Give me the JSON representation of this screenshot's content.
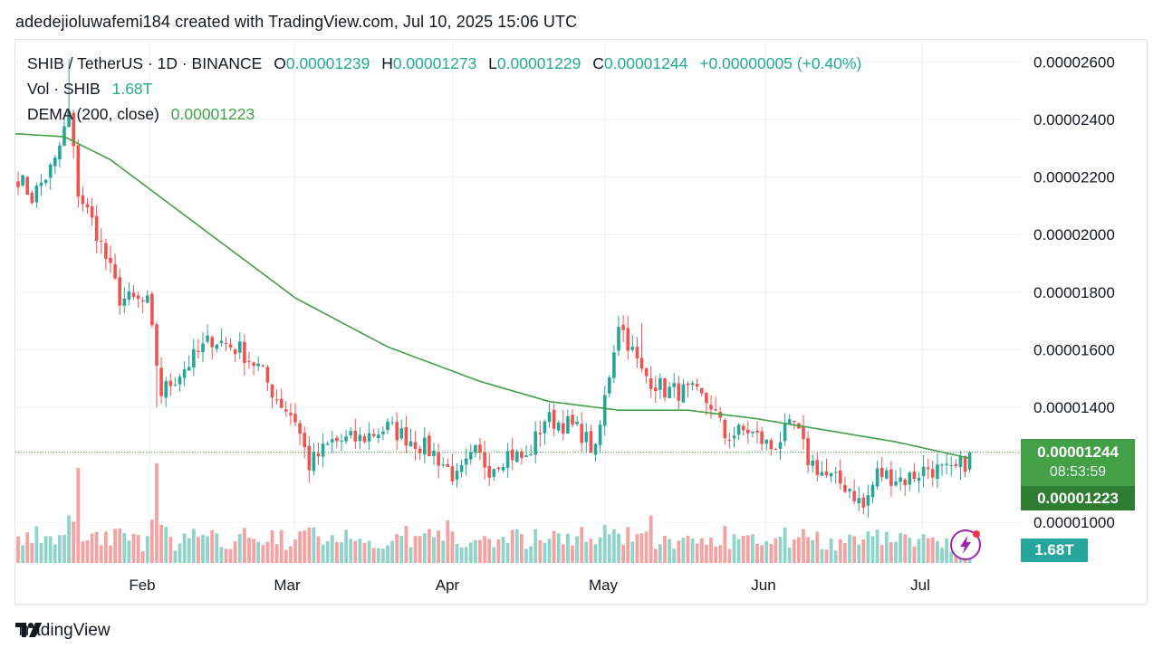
{
  "caption": "adedejioluwafemi184 created with TradingView.com, Jul 10, 2025 15:06 UTC",
  "legend": {
    "symbol": "SHIB / TetherUS · 1D · BINANCE",
    "o_label": "O",
    "o_value": "0.00001239",
    "h_label": "H",
    "h_value": "0.00001273",
    "l_label": "L",
    "l_value": "0.00001229",
    "c_label": "C",
    "c_value": "0.00001244",
    "change": "+0.00000005 (+0.40%)",
    "vol_label": "Vol · SHIB",
    "vol_value": "1.68T",
    "dema_label": "DEMA (200, close)",
    "dema_value": "0.00001223"
  },
  "badges": {
    "last_price": "0.00001244",
    "countdown": "08:53:59",
    "dema_price": "0.00001223",
    "volume": "1.68T"
  },
  "brand": "TradingView",
  "colors": {
    "up": "#26a69a",
    "down": "#ef5350",
    "vol_up": "#8fd3cb",
    "vol_down": "#f5a3a2",
    "dema": "#43a047",
    "grid": "#f0f3fa",
    "last_badge": "#43a047",
    "dema_badge": "#2e7d32",
    "vol_badge": "#26a69a"
  },
  "chart_data": {
    "type": "candlestick",
    "title": "SHIB / TetherUS · 1D · BINANCE",
    "y_axis": {
      "ticks": [
        "0.00002600",
        "0.00002400",
        "0.00002200",
        "0.00002000",
        "0.00001800",
        "0.00001600",
        "0.00001400",
        "0.00001000"
      ],
      "ylim": [
        9.3e-06,
        2.7e-05
      ]
    },
    "x_axis": {
      "ticks": [
        "Feb",
        "Mar",
        "Apr",
        "May",
        "Jun",
        "Jul"
      ]
    },
    "last_close": 1.244e-05,
    "dema_last": 1.223e-05,
    "anchors": [
      [
        0,
        22.0
      ],
      [
        3,
        21.3
      ],
      [
        8,
        22.5
      ],
      [
        11,
        24.2
      ],
      [
        13,
        21.5
      ],
      [
        17,
        20.1
      ],
      [
        22,
        17.8
      ],
      [
        28,
        17.6
      ],
      [
        31,
        14.5
      ],
      [
        35,
        15.2
      ],
      [
        42,
        16.4
      ],
      [
        48,
        16.0
      ],
      [
        52,
        15.4
      ],
      [
        56,
        14.3
      ],
      [
        60,
        13.6
      ],
      [
        63,
        12.0
      ],
      [
        68,
        12.8
      ],
      [
        74,
        12.9
      ],
      [
        80,
        13.3
      ],
      [
        86,
        12.8
      ],
      [
        90,
        12.4
      ],
      [
        95,
        11.5
      ],
      [
        99,
        12.4
      ],
      [
        102,
        11.9
      ],
      [
        106,
        12.4
      ],
      [
        110,
        12.2
      ],
      [
        114,
        13.6
      ],
      [
        119,
        13.4
      ],
      [
        122,
        13.1
      ],
      [
        125,
        12.4
      ],
      [
        127,
        14.3
      ],
      [
        130,
        17.0
      ],
      [
        135,
        15.2
      ],
      [
        140,
        14.6
      ],
      [
        146,
        14.5
      ],
      [
        150,
        14.1
      ],
      [
        153,
        13.0
      ],
      [
        158,
        13.2
      ],
      [
        163,
        12.6
      ],
      [
        168,
        13.4
      ],
      [
        171,
        12.2
      ],
      [
        175,
        11.6
      ],
      [
        180,
        11.2
      ],
      [
        183,
        10.5
      ],
      [
        186,
        11.7
      ],
      [
        192,
        11.5
      ],
      [
        197,
        11.9
      ],
      [
        202,
        11.7
      ],
      [
        205,
        12.1
      ],
      [
        206,
        12.44
      ]
    ],
    "dema_anchors": [
      [
        0,
        23.5
      ],
      [
        10,
        23.4
      ],
      [
        20,
        22.6
      ],
      [
        30,
        21.4
      ],
      [
        45,
        19.6
      ],
      [
        60,
        17.8
      ],
      [
        80,
        16.1
      ],
      [
        100,
        14.9
      ],
      [
        115,
        14.2
      ],
      [
        130,
        13.9
      ],
      [
        145,
        13.9
      ],
      [
        160,
        13.6
      ],
      [
        175,
        13.2
      ],
      [
        190,
        12.8
      ],
      [
        206,
        12.23
      ]
    ],
    "volume_spikes": [
      [
        13,
        1.0
      ],
      [
        30,
        1.05
      ],
      [
        11,
        0.5
      ],
      [
        71,
        0.35
      ],
      [
        93,
        0.45
      ],
      [
        132,
        0.38
      ],
      [
        137,
        0.5
      ],
      [
        186,
        0.35
      ]
    ]
  }
}
